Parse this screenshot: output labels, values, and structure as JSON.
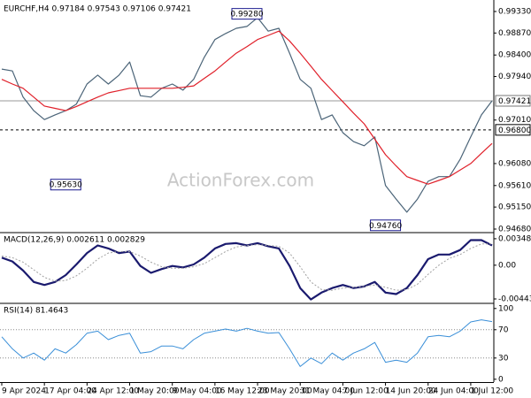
{
  "chart_data": [
    {
      "type": "line",
      "title": "EURCHF,H4 0.97184 0.97543 0.97106 0.97421",
      "watermark": "ActionForex.com",
      "x": [
        0,
        2,
        4,
        6,
        8,
        10,
        12,
        14,
        16,
        18,
        20,
        22,
        24,
        26,
        28,
        30,
        32,
        34,
        36,
        38,
        40,
        42,
        44,
        46,
        48,
        50,
        52,
        54,
        56,
        58,
        60,
        62,
        64,
        66,
        68,
        70,
        72,
        74,
        76,
        78,
        80,
        82,
        84,
        86,
        88,
        90,
        92
      ],
      "xlim": [
        0,
        92
      ],
      "series": [
        {
          "color": "#4b6478",
          "width": 1.2,
          "values": [
            0.981,
            0.9806,
            0.975,
            0.9721,
            0.9702,
            0.9712,
            0.9721,
            0.9735,
            0.9778,
            0.9797,
            0.9778,
            0.9797,
            0.9825,
            0.9753,
            0.975,
            0.9769,
            0.9778,
            0.9765,
            0.9788,
            0.9835,
            0.9873,
            0.9886,
            0.9897,
            0.9901,
            0.992,
            0.9891,
            0.9897,
            0.9844,
            0.9788,
            0.9769,
            0.9702,
            0.9712,
            0.9674,
            0.9655,
            0.9646,
            0.9665,
            0.9561,
            0.9532,
            0.9504,
            0.9532,
            0.957,
            0.958,
            0.958,
            0.9617,
            0.9665,
            0.9712,
            0.97421
          ]
        },
        {
          "color": "#e0202a",
          "width": 1.2,
          "values": [
            0.9788,
            0.9778,
            0.9769,
            0.975,
            0.9731,
            0.9726,
            0.9721,
            0.973,
            0.974,
            0.975,
            0.9759,
            0.9764,
            0.9769,
            0.9769,
            0.9769,
            0.9769,
            0.9769,
            0.9771,
            0.9774,
            0.979,
            0.9806,
            0.9825,
            0.9844,
            0.9858,
            0.9873,
            0.9882,
            0.9891,
            0.987,
            0.9844,
            0.9816,
            0.9788,
            0.9764,
            0.974,
            0.9716,
            0.9693,
            0.966,
            0.9627,
            0.9603,
            0.958,
            0.9572,
            0.9564,
            0.9572,
            0.958,
            0.9594,
            0.9608,
            0.963,
            0.9651
          ]
        }
      ],
      "ylim": [
        0.94623,
        0.99519
      ],
      "yticks": [
        {
          "value": 0.9933,
          "label": "0.99330"
        },
        {
          "value": 0.9887,
          "label": "0.98870"
        },
        {
          "value": 0.984,
          "label": "0.98400"
        },
        {
          "value": 0.9794,
          "label": "0.97940"
        },
        {
          "value": 0.9701,
          "label": "0.97010"
        },
        {
          "value": 0.9608,
          "label": "0.96080"
        },
        {
          "value": 0.9561,
          "label": "0.95610"
        },
        {
          "value": 0.9515,
          "label": "0.95150"
        },
        {
          "value": 0.9468,
          "label": "0.94680"
        }
      ],
      "hlines": [
        {
          "value": 0.97421,
          "label": "0.97421",
          "style": "solid"
        },
        {
          "value": 0.968,
          "label": "0.96800",
          "style": "dashed"
        }
      ],
      "annotations": [
        {
          "value": 0.9928,
          "label": "0.99280",
          "x": 46
        },
        {
          "value": 0.9563,
          "label": "0.95630",
          "x": 12
        },
        {
          "value": 0.9476,
          "label": "0.94760",
          "x": 72
        }
      ]
    },
    {
      "type": "line",
      "title": "MACD(12,26,9) 0.002611 0.002829",
      "x": [
        0,
        2,
        4,
        6,
        8,
        10,
        12,
        14,
        16,
        18,
        20,
        22,
        24,
        26,
        28,
        30,
        32,
        34,
        36,
        38,
        40,
        42,
        44,
        46,
        48,
        50,
        52,
        54,
        56,
        58,
        60,
        62,
        64,
        66,
        68,
        70,
        72,
        74,
        76,
        78,
        80,
        82,
        84,
        86,
        88,
        90,
        92
      ],
      "xlim": [
        0,
        92
      ],
      "series": [
        {
          "color": "#1a1a6e",
          "width": 2.2,
          "values": [
            0.001,
            0.0005,
            -0.0007,
            -0.0022,
            -0.0026,
            -0.0022,
            -0.0013,
            0.0001,
            0.0016,
            0.0026,
            0.0022,
            0.0016,
            0.0018,
            -0.0001,
            -0.001,
            -0.0005,
            -0.0001,
            -0.0003,
            0.0001,
            0.001,
            0.0022,
            0.0028,
            0.0029,
            0.0026,
            0.0029,
            0.0025,
            0.0022,
            -0.0001,
            -0.003,
            -0.0045,
            -0.0036,
            -0.003,
            -0.0026,
            -0.003,
            -0.0028,
            -0.0022,
            -0.0036,
            -0.0038,
            -0.003,
            -0.0013,
            0.0008,
            0.0014,
            0.0014,
            0.002,
            0.0033,
            0.0033,
            0.0026
          ]
        },
        {
          "color": "#a0a0a0",
          "width": 1,
          "dashed": true,
          "values": [
            0.0012,
            0.001,
            0.0004,
            -0.0006,
            -0.0016,
            -0.0021,
            -0.002,
            -0.0014,
            -0.0004,
            0.0008,
            0.0016,
            0.0018,
            0.0018,
            0.0012,
            0.0004,
            -0.0002,
            -0.0004,
            -0.0004,
            -0.0002,
            0.0002,
            0.001,
            0.0018,
            0.0024,
            0.0026,
            0.0027,
            0.0026,
            0.0025,
            0.0016,
            -0.0002,
            -0.0022,
            -0.0032,
            -0.0033,
            -0.003,
            -0.0029,
            -0.0028,
            -0.0026,
            -0.0029,
            -0.0033,
            -0.0032,
            -0.0025,
            -0.0012,
            0.0,
            0.0009,
            0.0014,
            0.0022,
            0.0028,
            0.0028
          ]
        }
      ],
      "ylim": [
        -0.0049,
        0.00417
      ],
      "yticks": [
        0.003481,
        {
          "value": 0,
          "label": "0.00"
        },
        -0.004436
      ]
    },
    {
      "type": "line",
      "title": "RSI(14) 81.4643",
      "x": [
        0,
        2,
        4,
        6,
        8,
        10,
        12,
        14,
        16,
        18,
        20,
        22,
        24,
        26,
        28,
        30,
        32,
        34,
        36,
        38,
        40,
        42,
        44,
        46,
        48,
        50,
        52,
        54,
        56,
        58,
        60,
        62,
        64,
        66,
        68,
        70,
        72,
        74,
        76,
        78,
        80,
        82,
        84,
        86,
        88,
        90,
        92
      ],
      "xlim": [
        0,
        92
      ],
      "series": [
        {
          "color": "#3a8fd8",
          "width": 1,
          "values": [
            60,
            43,
            30,
            37,
            27,
            43,
            37,
            49,
            65,
            68,
            56,
            62,
            65,
            37,
            39,
            47,
            47,
            43,
            56,
            65,
            68,
            71,
            68,
            72,
            68,
            65,
            66,
            43,
            18,
            30,
            22,
            37,
            27,
            37,
            43,
            52,
            24,
            27,
            24,
            37,
            60,
            62,
            60,
            68,
            81,
            84,
            81.4643
          ]
        }
      ],
      "ylim": [
        -4,
        106
      ],
      "yticks": [
        100,
        70,
        30,
        0
      ],
      "levels": [
        70,
        30
      ],
      "xticks": [
        {
          "value": 0,
          "label": "9 Apr 2024"
        },
        {
          "value": 8,
          "label": "17 Apr 04:00"
        },
        {
          "value": 16,
          "label": "24 Apr 12:00"
        },
        {
          "value": 24,
          "label": "1 May 20:00"
        },
        {
          "value": 32,
          "label": "9 May 04:00"
        },
        {
          "value": 40,
          "label": "16 May 12:00"
        },
        {
          "value": 48,
          "label": "23 May 20:00"
        },
        {
          "value": 56,
          "label": "31 May 04:00"
        },
        {
          "value": 64,
          "label": "7 Jun 12:00"
        },
        {
          "value": 72,
          "label": "14 Jun 20:00"
        },
        {
          "value": 80,
          "label": "24 Jun 04:00"
        },
        {
          "value": 88,
          "label": "1 Jul 12:00"
        }
      ]
    }
  ]
}
